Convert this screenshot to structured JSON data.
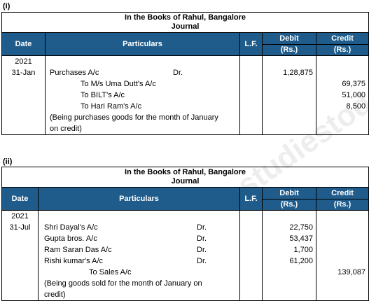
{
  "journals": [
    {
      "label": "(i)",
      "title": "In the Books of Rahul, Bangalore",
      "subtitle": "Journal",
      "headers": {
        "date": "Date",
        "particulars": "Particulars",
        "lf": "L.F.",
        "debit": "Debit",
        "credit": "Credit",
        "unit": "(Rs.)"
      },
      "year": "2021",
      "date": "31-Jan",
      "lines": [
        {
          "text": "Purchases A/c",
          "dr": "Dr.",
          "debit": "1,28,875",
          "credit": ""
        },
        {
          "text": "To M/s Uma Dutt's A/c",
          "dr": "",
          "debit": "",
          "credit": "69,375"
        },
        {
          "text": "To BILT's A/c",
          "dr": "",
          "debit": "",
          "credit": "51,000"
        },
        {
          "text": "To Hari Ram's A/c",
          "dr": "",
          "debit": "",
          "credit": "8,500"
        },
        {
          "text": "(Being purchases goods for the month of January",
          "dr": "",
          "debit": "",
          "credit": ""
        },
        {
          "text": "on credit)",
          "dr": "",
          "debit": "",
          "credit": ""
        }
      ]
    },
    {
      "label": "(ii)",
      "title": "In the Books of Rahul, Bangalore",
      "subtitle": "Journal",
      "headers": {
        "date": "Date",
        "particulars": "Particulars",
        "lf": "L.F.",
        "debit": "Debit",
        "credit": "Credit",
        "unit": "(Rs.)"
      },
      "year": "2021",
      "date": "31-Jul",
      "lines": [
        {
          "text": "Shri Dayal's A/c",
          "dr": "Dr.",
          "debit": "22,750",
          "credit": ""
        },
        {
          "text": "Gupta bros. A/c",
          "dr": "Dr.",
          "debit": "53,437",
          "credit": ""
        },
        {
          "text": "Ram Saran Das A/c",
          "dr": "Dr.",
          "debit": "1,700",
          "credit": ""
        },
        {
          "text": "Rishi kumar's A/c",
          "dr": "Dr.",
          "debit": "61,200",
          "credit": ""
        },
        {
          "text": "To Sales A/c",
          "dr": "",
          "debit": "",
          "credit": "139,087"
        },
        {
          "text": "(Being goods sold for the month of January on",
          "dr": "",
          "debit": "",
          "credit": ""
        },
        {
          "text": "credit)",
          "dr": "",
          "debit": "",
          "credit": ""
        }
      ]
    }
  ],
  "watermark": "studiestoday.com"
}
